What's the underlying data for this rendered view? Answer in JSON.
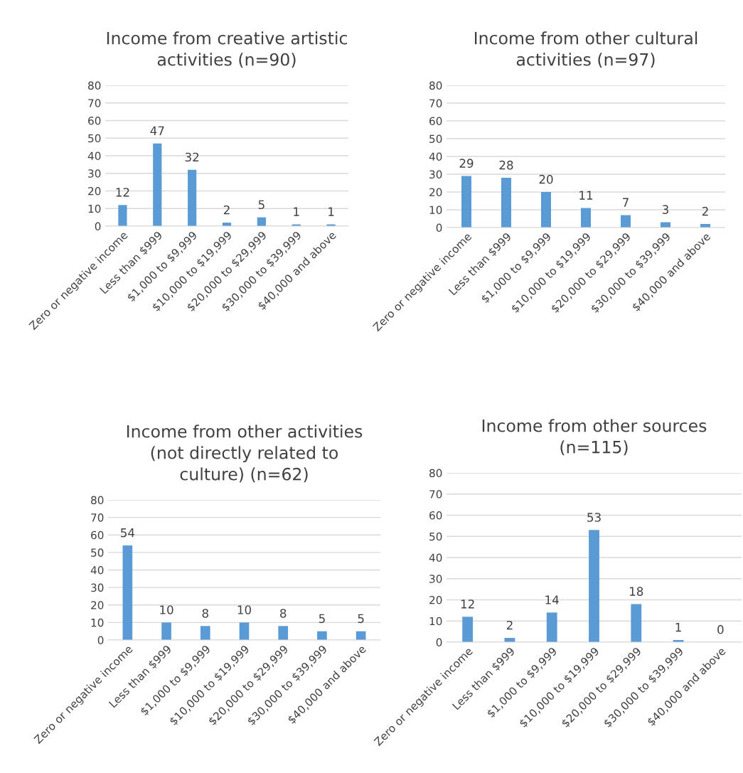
{
  "chart_data": [
    {
      "type": "bar",
      "title": "Income from creative artistic\nactivities (n=90)",
      "categories": [
        "Zero or negative income",
        "Less than $999",
        "$1,000 to $9,999",
        "$10,000 to $19,999",
        "$20,000 to $29,999",
        "$30,000 to $39,999",
        "$40,000 and above"
      ],
      "values": [
        12,
        47,
        32,
        2,
        5,
        1,
        1
      ],
      "color": "#5b9bd5",
      "ylim": [
        0,
        80
      ],
      "yticks": [
        0,
        10,
        20,
        30,
        40,
        50,
        60,
        70,
        80
      ],
      "grid": "y",
      "data_labels": true
    },
    {
      "type": "bar",
      "title": "Income from other cultural\nactivities (n=97)",
      "categories": [
        "Zero or negative income",
        "Less than $999",
        "$1,000 to $9,999",
        "$10,000 to $19,999",
        "$20,000 to $29,999",
        "$30,000 to $39,999",
        "$40,000 and above"
      ],
      "values": [
        29,
        28,
        20,
        11,
        7,
        3,
        2
      ],
      "color": "#5b9bd5",
      "ylim": [
        0,
        80
      ],
      "yticks": [
        0,
        10,
        20,
        30,
        40,
        50,
        60,
        70,
        80
      ],
      "grid": "y",
      "data_labels": true
    },
    {
      "type": "bar",
      "title": "Income from other activities\n(not directly related to\nculture) (n=62)",
      "categories": [
        "Zero or negative income",
        "Less than $999",
        "$1,000 to $9,999",
        "$10,000 to $19,999",
        "$20,000 to $29,999",
        "$30,000 to $39,999",
        "$40,000 and above"
      ],
      "values": [
        54,
        10,
        8,
        10,
        8,
        5,
        5
      ],
      "color": "#5b9bd5",
      "ylim": [
        0,
        80
      ],
      "yticks": [
        0,
        10,
        20,
        30,
        40,
        50,
        60,
        70,
        80
      ],
      "grid": "y",
      "data_labels": true
    },
    {
      "type": "bar",
      "title": "Income from other sources\n(n=115)",
      "categories": [
        "Zero or negative income",
        "Less than $999",
        "$1,000 to $9,999",
        "$10,000 to $19,999",
        "$20,000 to $29,999",
        "$30,000 to $39,999",
        "$40,000 and above"
      ],
      "values": [
        12,
        2,
        14,
        53,
        18,
        1,
        0
      ],
      "color": "#5b9bd5",
      "ylim": [
        0,
        80
      ],
      "yticks": [
        0,
        10,
        20,
        30,
        40,
        50,
        60,
        70,
        80
      ],
      "grid": "y",
      "data_labels": true
    }
  ]
}
